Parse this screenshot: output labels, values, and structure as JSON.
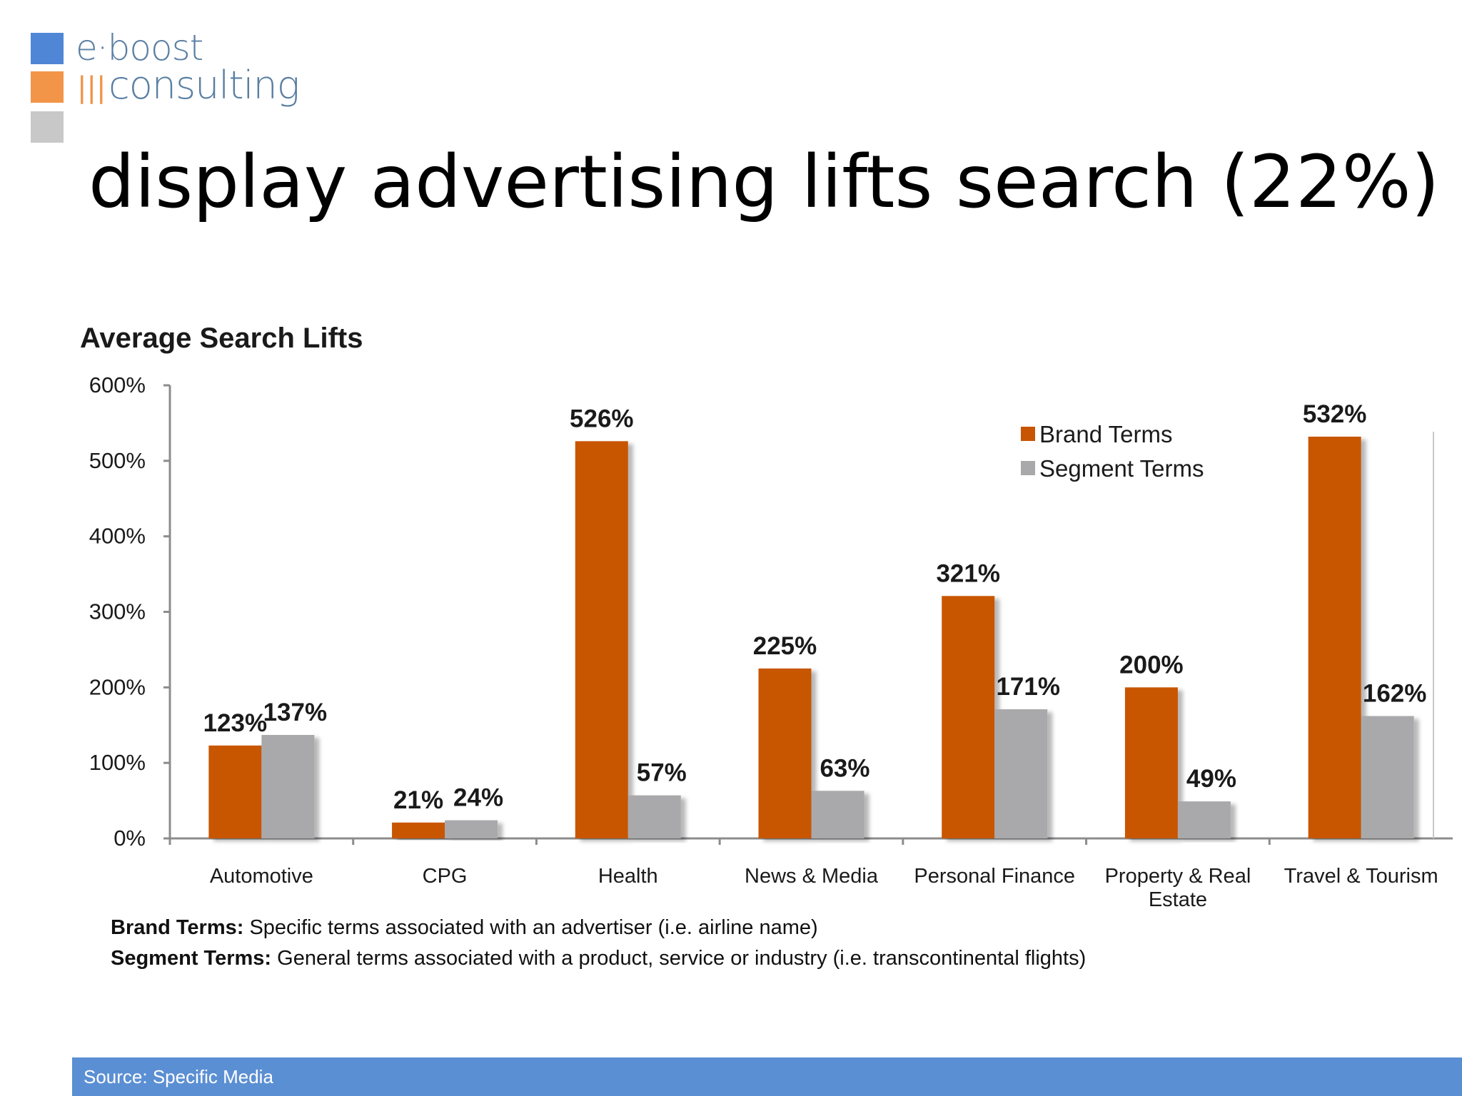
{
  "logo": {
    "line1": "e·boost",
    "line2": "consulting",
    "bars": "|||",
    "colors": [
      "#4f86d6",
      "#f39548",
      "#c8c8c8"
    ]
  },
  "slide_title": "display advertising lifts search (22%)",
  "chart_data": {
    "type": "bar",
    "title": "Average Search Lifts",
    "categories": [
      "Automotive",
      "CPG",
      "Health",
      "News & Media",
      "Personal Finance",
      "Property & Real Estate",
      "Travel & Tourism"
    ],
    "series": [
      {
        "name": "Brand Terms",
        "values": [
          123,
          21,
          526,
          225,
          321,
          200,
          532
        ],
        "labels": [
          "123%",
          "21%",
          "526%",
          "225%",
          "321%",
          "200%",
          "532%"
        ],
        "color": "#c85503"
      },
      {
        "name": "Segment Terms",
        "values": [
          137,
          24,
          57,
          63,
          171,
          49,
          162
        ],
        "labels": [
          "137%",
          "24%",
          "57%",
          "63%",
          "171%",
          "49%",
          "162%"
        ],
        "color": "#a9a9ab"
      }
    ],
    "yticks": [
      "0%",
      "100%",
      "200%",
      "300%",
      "400%",
      "500%",
      "600%"
    ],
    "ylim": [
      0,
      600
    ],
    "xlabel": "",
    "ylabel": "",
    "grid": false,
    "legend_position": "top-right"
  },
  "notes": [
    {
      "term": "Brand Terms:",
      "text": "Specific terms associated with an advertiser (i.e. airline name)"
    },
    {
      "term": "Segment Terms:",
      "text": "General terms associated with a product, service or industry (i.e. transcontinental flights)"
    }
  ],
  "footer": {
    "source": "Source: Specific Media",
    "color": "#5b8fd3"
  }
}
